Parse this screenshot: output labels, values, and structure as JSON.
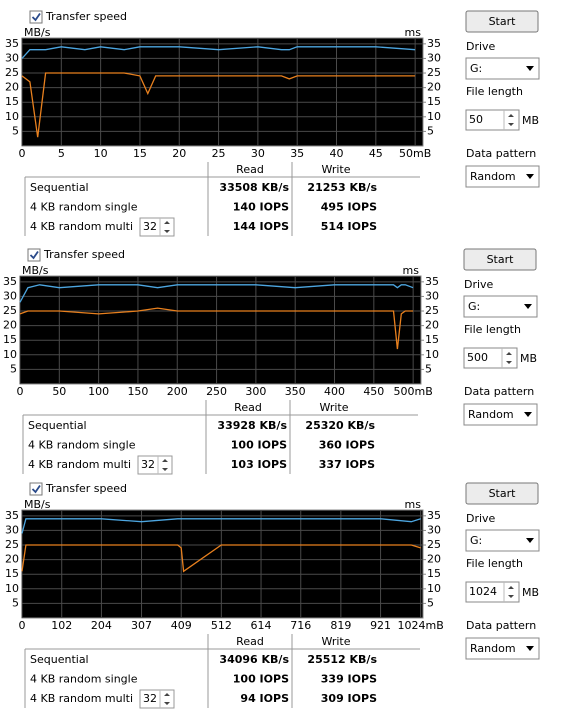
{
  "chart_data": [
    {
      "type": "line",
      "y_label": "MB/s",
      "y2_label": "ms",
      "x": [
        0,
        1,
        2,
        3,
        5,
        8,
        10,
        13,
        15,
        16,
        17,
        20,
        25,
        30,
        33,
        34,
        35,
        40,
        45,
        50
      ],
      "series": [
        {
          "color": "#4da6e0",
          "values": [
            30,
            33,
            33,
            33,
            34,
            33,
            34,
            33,
            34,
            34,
            34,
            34,
            33,
            34,
            33,
            33,
            34,
            34,
            34,
            33
          ]
        },
        {
          "color": "#e8801e",
          "values": [
            24,
            22,
            3,
            25,
            25,
            25,
            25,
            25,
            24,
            18,
            24,
            24,
            24,
            24,
            24,
            23,
            24,
            24,
            24,
            24
          ]
        }
      ],
      "xlim": [
        0,
        51
      ],
      "xticks": [
        0,
        5,
        10,
        15,
        20,
        25,
        30,
        35,
        40,
        45,
        {
          "value": 50,
          "label": "50mB"
        }
      ],
      "ylim": [
        0,
        37
      ],
      "yticks": [
        5,
        10,
        15,
        20,
        25,
        30,
        35
      ],
      "y2lim": [
        0,
        37
      ],
      "y2ticks": [
        5,
        10,
        15,
        20,
        25,
        30,
        35
      ],
      "grid": true
    },
    {
      "type": "line",
      "y_label": "MB/s",
      "y2_label": "ms",
      "x": [
        0,
        10,
        25,
        50,
        100,
        150,
        175,
        200,
        250,
        300,
        350,
        400,
        450,
        475,
        480,
        485,
        490,
        500
      ],
      "series": [
        {
          "color": "#4da6e0",
          "values": [
            28,
            33,
            34,
            33,
            34,
            34,
            33,
            34,
            34,
            34,
            33,
            34,
            34,
            34,
            33,
            34,
            34,
            33
          ]
        },
        {
          "color": "#e8801e",
          "values": [
            24,
            25,
            25,
            25,
            24,
            25,
            26,
            25,
            25,
            25,
            25,
            25,
            25,
            25,
            12,
            24,
            25,
            25
          ]
        }
      ],
      "xlim": [
        0,
        510
      ],
      "xticks": [
        0,
        50,
        100,
        150,
        200,
        250,
        300,
        350,
        400,
        450,
        {
          "value": 500,
          "label": "500mB"
        }
      ],
      "ylim": [
        0,
        37
      ],
      "yticks": [
        5,
        10,
        15,
        20,
        25,
        30,
        35
      ],
      "y2lim": [
        0,
        37
      ],
      "y2ticks": [
        5,
        10,
        15,
        20,
        25,
        30,
        35
      ],
      "grid": true
    },
    {
      "type": "line",
      "y_label": "MB/s",
      "y2_label": "ms",
      "x": [
        0,
        10,
        30,
        102,
        204,
        307,
        400,
        409,
        415,
        512,
        614,
        716,
        819,
        921,
        1000,
        1024
      ],
      "series": [
        {
          "color": "#4da6e0",
          "values": [
            29,
            34,
            34,
            34,
            34,
            33,
            34,
            34,
            34,
            34,
            34,
            34,
            34,
            34,
            33,
            34
          ]
        },
        {
          "color": "#e8801e",
          "values": [
            16,
            25,
            25,
            25,
            25,
            25,
            25,
            24,
            16,
            25,
            25,
            25,
            25,
            25,
            25,
            24
          ]
        }
      ],
      "xlim": [
        0,
        1030
      ],
      "xticks": [
        0,
        102,
        204,
        307,
        409,
        512,
        614,
        716,
        819,
        921,
        {
          "value": 1024,
          "label": "1024mB"
        }
      ],
      "ylim": [
        0,
        37
      ],
      "yticks": [
        5,
        10,
        15,
        20,
        25,
        30,
        35
      ],
      "y2lim": [
        0,
        37
      ],
      "y2ticks": [
        5,
        10,
        15,
        20,
        25,
        30,
        35
      ],
      "grid": true
    }
  ],
  "panels": [
    {
      "checkbox": "Transfer speed",
      "start": "Start",
      "drive_label": "Drive",
      "drive": "G:",
      "file_length_label": "File length",
      "file_length": "50",
      "file_length_unit": "MB",
      "pattern_label": "Data pattern",
      "pattern": "Random",
      "table": {
        "headers": [
          "Read",
          "Write"
        ],
        "rows": [
          {
            "label": "Sequential",
            "read": "33508 KB/s",
            "write": "21253 KB/s"
          },
          {
            "label": "4 KB random single",
            "read": "140 IOPS",
            "write": "495 IOPS"
          },
          {
            "label": "4 KB random multi",
            "queue": "32",
            "read": "144 IOPS",
            "write": "514 IOPS"
          }
        ]
      }
    },
    {
      "checkbox": "Transfer speed",
      "start": "Start",
      "drive_label": "Drive",
      "drive": "G:",
      "file_length_label": "File length",
      "file_length": "500",
      "file_length_unit": "MB",
      "pattern_label": "Data pattern",
      "pattern": "Random",
      "table": {
        "headers": [
          "Read",
          "Write"
        ],
        "rows": [
          {
            "label": "Sequential",
            "read": "33928 KB/s",
            "write": "25320 KB/s"
          },
          {
            "label": "4 KB random single",
            "read": "100 IOPS",
            "write": "360 IOPS"
          },
          {
            "label": "4 KB random multi",
            "queue": "32",
            "read": "103 IOPS",
            "write": "337 IOPS"
          }
        ]
      }
    },
    {
      "checkbox": "Transfer speed",
      "start": "Start",
      "drive_label": "Drive",
      "drive": "G:",
      "file_length_label": "File length",
      "file_length": "1024",
      "file_length_unit": "MB",
      "pattern_label": "Data pattern",
      "pattern": "Random",
      "table": {
        "headers": [
          "Read",
          "Write"
        ],
        "rows": [
          {
            "label": "Sequential",
            "read": "34096 KB/s",
            "write": "25512 KB/s"
          },
          {
            "label": "4 KB random single",
            "read": "100 IOPS",
            "write": "339 IOPS"
          },
          {
            "label": "4 KB random multi",
            "queue": "32",
            "read": "94 IOPS",
            "write": "309 IOPS"
          }
        ]
      }
    }
  ]
}
